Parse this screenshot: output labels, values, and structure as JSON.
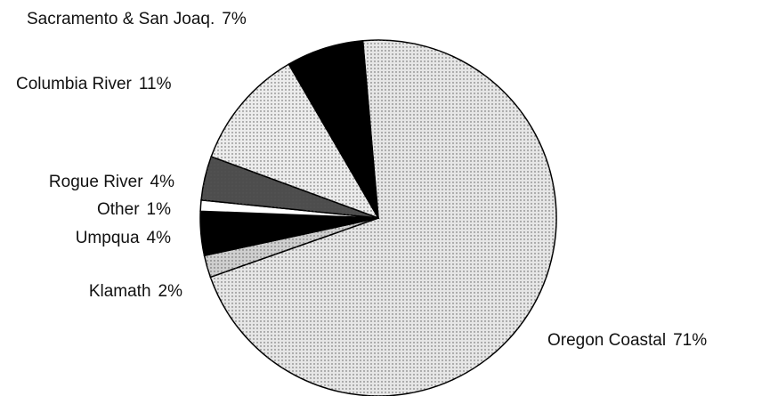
{
  "chart_data": {
    "type": "pie",
    "categories": [
      "Oregon Coastal",
      "Klamath",
      "Umpqua",
      "Other",
      "Rogue River",
      "Columbia River",
      "Sacramento & San Joaq."
    ],
    "values": [
      71,
      2,
      4,
      1,
      4,
      11,
      7
    ],
    "value_labels": [
      "71%",
      "2%",
      "4%",
      "1%",
      "4%",
      "11%",
      "7%"
    ],
    "colors": [
      "#e6e6e6",
      "#cfcfcf",
      "#000000",
      "#ffffff",
      "#4d4d4d",
      "#ececec",
      "#000000"
    ]
  }
}
